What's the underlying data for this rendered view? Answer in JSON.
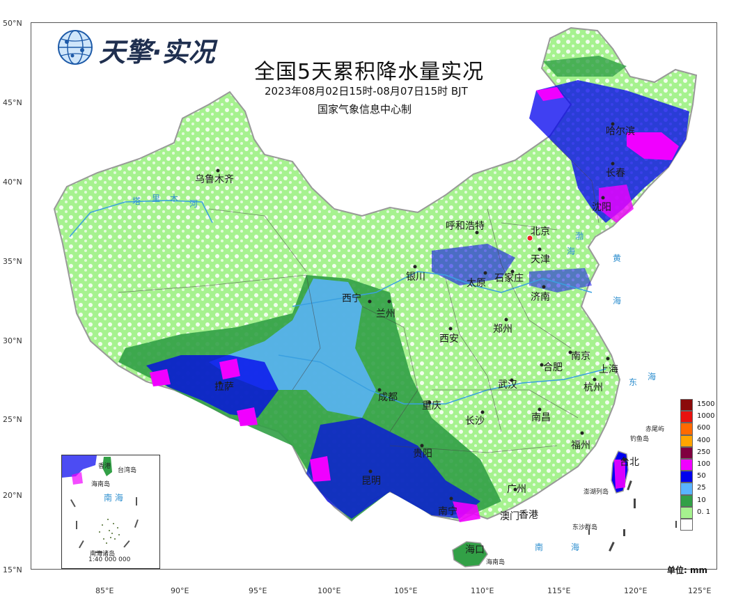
{
  "logo": {
    "text": "天擎·实况"
  },
  "title": "全国5天累积降水量实况",
  "subtitle": "2023年08月02日15时-08月07日15时 BJT",
  "producer": "国家气象信息中心制",
  "lat_labels": [
    "50°N",
    "45°N",
    "40°N",
    "35°N",
    "30°N",
    "25°N",
    "20°N",
    "15°N"
  ],
  "lon_labels": [
    "85°E",
    "90°E",
    "95°E",
    "100°E",
    "105°E",
    "110°E",
    "115°E",
    "120°E",
    "125°E"
  ],
  "cities": [
    "乌鲁木齐",
    "哈尔滨",
    "长春",
    "沈阳",
    "呼和浩特",
    "北京",
    "天津",
    "银川",
    "太原",
    "石家庄",
    "西宁",
    "兰州",
    "济南",
    "郑州",
    "西安",
    "南京",
    "上海",
    "合肥",
    "杭州",
    "成都",
    "武汉",
    "重庆",
    "拉萨",
    "长沙",
    "南昌",
    "福州",
    "贵阳",
    "台北",
    "昆明",
    "广州",
    "南宁",
    "澳门",
    "香港",
    "海口"
  ],
  "seas": [
    "渤",
    "海",
    "黄",
    "海",
    "东",
    "海",
    "南",
    "海"
  ],
  "river": [
    "塔",
    "里",
    "木",
    "河"
  ],
  "islands": {
    "chiwei": "赤尾屿",
    "diaoyu": "钓鱼岛",
    "penghu": "澎湖列岛",
    "dongsha": "东沙群岛",
    "hainan": "海南岛"
  },
  "inset": {
    "hk": "香港",
    "taiwan": "台湾岛",
    "hainan": "海南岛",
    "sea": "南 海",
    "nanhai": "南海诸岛",
    "scale": "1:40 000 000"
  },
  "legend": [
    {
      "label": "1500",
      "color": "#8b0a0a"
    },
    {
      "label": "1000",
      "color": "#e8120f"
    },
    {
      "label": "600",
      "color": "#ff6a00"
    },
    {
      "label": "400",
      "color": "#ffa500"
    },
    {
      "label": "250",
      "color": "#800040"
    },
    {
      "label": "100",
      "color": "#f000ff"
    },
    {
      "label": "50",
      "color": "#0000ee"
    },
    {
      "label": "25",
      "color": "#5ab4ff"
    },
    {
      "label": "10",
      "color": "#32a046"
    },
    {
      "label": "0. 1",
      "color": "#a6f28f"
    },
    {
      "label": "",
      "color": "#ffffff"
    }
  ],
  "unit": "单位: mm"
}
